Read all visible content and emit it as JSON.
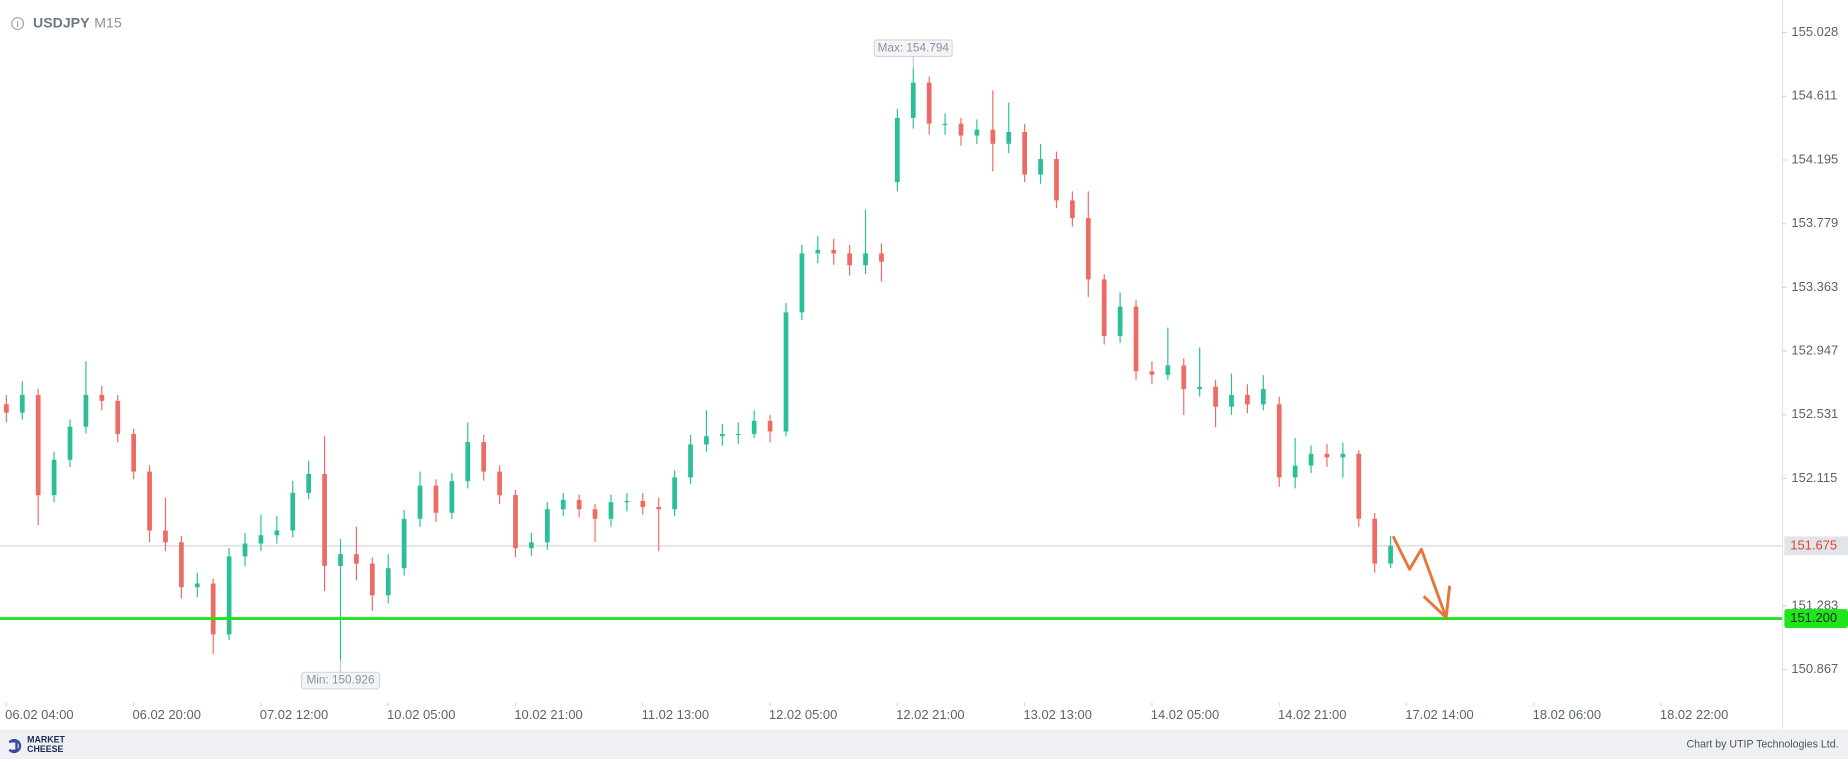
{
  "chart_data": {
    "type": "candlestick",
    "title": "USDJPY",
    "subtitle": "M15",
    "up_color": "#2bbf98",
    "down_color": "#ee6b63",
    "xlim": [
      -0.4,
      111.6
    ],
    "ylim": [
      150.66,
      155.24
    ],
    "yticks": [
      155.028,
      154.611,
      154.195,
      153.779,
      153.363,
      152.947,
      152.531,
      152.115,
      151.283,
      150.867
    ],
    "xticks": [
      {
        "value": 0,
        "label": "06.02 04:00"
      },
      {
        "value": 8,
        "label": "06.02 20:00"
      },
      {
        "value": 16,
        "label": "07.02 12:00"
      },
      {
        "value": 24,
        "label": "10.02 05:00"
      },
      {
        "value": 32,
        "label": "10.02 21:00"
      },
      {
        "value": 40,
        "label": "11.02 13:00"
      },
      {
        "value": 48,
        "label": "12.02 05:00"
      },
      {
        "value": 56,
        "label": "12.02 21:00"
      },
      {
        "value": 64,
        "label": "13.02 13:00"
      },
      {
        "value": 72,
        "label": "14.02 05:00"
      },
      {
        "value": 80,
        "label": "14.02 21:00"
      },
      {
        "value": 88,
        "label": "17.02 14:00"
      },
      {
        "value": 96,
        "label": "18.02 06:00"
      },
      {
        "value": 104,
        "label": "18.02 22:00"
      }
    ],
    "candles": {
      "open": [
        152.6,
        152.545,
        152.661,
        152.006,
        152.237,
        152.453,
        152.661,
        152.622,
        152.406,
        152.16,
        151.775,
        151.698,
        151.405,
        151.429,
        151.097,
        151.606,
        151.69,
        151.744,
        151.775,
        152.021,
        152.145,
        151.544,
        151.621,
        151.559,
        151.352,
        151.529,
        151.852,
        152.068,
        151.891,
        152.098,
        152.353,
        152.16,
        152.006,
        151.66,
        151.698,
        151.914,
        151.975,
        151.914,
        151.852,
        151.96,
        151.968,
        151.929,
        151.914,
        152.122,
        152.337,
        152.391,
        152.406,
        152.406,
        152.491,
        152.422,
        153.2,
        153.585,
        153.608,
        153.585,
        153.508,
        153.585,
        154.05,
        154.47,
        154.701,
        154.432,
        154.432,
        154.355,
        154.393,
        154.301,
        154.378,
        154.1,
        154.201,
        153.931,
        153.816,
        153.415,
        153.046,
        153.238,
        152.815,
        152.792,
        152.853,
        152.699,
        152.714,
        152.584,
        152.661,
        152.599,
        152.6,
        152.122,
        152.199,
        152.276,
        152.253,
        152.276,
        151.852,
        151.559
      ],
      "high": [
        152.66,
        152.75,
        152.7,
        152.29,
        152.5,
        152.88,
        152.72,
        152.66,
        152.44,
        152.2,
        151.99,
        151.74,
        151.5,
        151.46,
        151.66,
        151.76,
        151.88,
        151.87,
        152.1,
        152.23,
        152.39,
        151.72,
        151.8,
        151.6,
        151.62,
        151.91,
        152.16,
        152.11,
        152.15,
        152.48,
        152.4,
        152.2,
        152.04,
        151.76,
        151.96,
        152.02,
        152.01,
        151.95,
        152.01,
        152.02,
        152.02,
        151.99,
        152.17,
        152.4,
        152.56,
        152.47,
        152.48,
        152.56,
        152.53,
        153.26,
        153.64,
        153.7,
        153.68,
        153.64,
        153.87,
        153.65,
        154.53,
        154.794,
        154.74,
        154.5,
        154.47,
        154.46,
        154.65,
        154.57,
        154.43,
        154.3,
        154.25,
        153.99,
        153.99,
        153.45,
        153.33,
        153.28,
        152.88,
        153.1,
        152.9,
        152.97,
        152.76,
        152.8,
        152.73,
        152.79,
        152.65,
        152.38,
        152.33,
        152.34,
        152.35,
        152.3,
        151.89,
        151.74
      ],
      "low": [
        152.48,
        152.5,
        151.81,
        151.96,
        152.19,
        152.41,
        152.56,
        152.35,
        152.11,
        151.7,
        151.64,
        151.33,
        151.34,
        150.97,
        151.06,
        151.54,
        151.64,
        151.69,
        151.73,
        151.98,
        151.38,
        150.926,
        151.45,
        151.25,
        151.3,
        151.48,
        151.8,
        151.83,
        151.85,
        152.05,
        152.1,
        151.95,
        151.6,
        151.61,
        151.65,
        151.87,
        151.86,
        151.7,
        151.8,
        151.9,
        151.88,
        151.64,
        151.87,
        152.08,
        152.29,
        152.33,
        152.34,
        152.38,
        152.35,
        152.39,
        153.15,
        153.52,
        153.51,
        153.44,
        153.45,
        153.4,
        153.99,
        154.4,
        154.36,
        154.36,
        154.29,
        154.3,
        154.12,
        154.24,
        154.05,
        154.04,
        153.88,
        153.76,
        153.3,
        152.99,
        153.0,
        152.76,
        152.73,
        152.76,
        152.53,
        152.65,
        152.45,
        152.53,
        152.54,
        152.56,
        152.06,
        152.05,
        152.15,
        152.19,
        152.12,
        151.8,
        151.5,
        151.53
      ],
      "close": [
        152.545,
        152.661,
        152.006,
        152.237,
        152.453,
        152.661,
        152.622,
        152.406,
        152.16,
        151.775,
        151.698,
        151.405,
        151.429,
        151.097,
        151.606,
        151.69,
        151.744,
        151.775,
        152.021,
        152.145,
        151.544,
        151.621,
        151.559,
        151.352,
        151.529,
        151.852,
        152.068,
        151.891,
        152.098,
        152.353,
        152.16,
        152.006,
        151.66,
        151.698,
        151.914,
        151.975,
        151.914,
        151.852,
        151.96,
        151.968,
        151.929,
        151.914,
        152.122,
        152.337,
        152.391,
        152.406,
        152.406,
        152.491,
        152.422,
        153.2,
        153.585,
        153.608,
        153.585,
        153.508,
        153.585,
        153.531,
        154.47,
        154.701,
        154.432,
        154.432,
        154.355,
        154.393,
        154.301,
        154.378,
        154.1,
        154.201,
        153.931,
        153.816,
        153.415,
        153.046,
        153.238,
        152.815,
        152.792,
        152.853,
        152.699,
        152.714,
        152.584,
        152.661,
        152.599,
        152.699,
        152.122,
        152.199,
        152.276,
        152.253,
        152.276,
        151.852,
        151.559,
        151.675
      ]
    },
    "annotations": [
      {
        "label": "Max: 154.794",
        "value": 154.794,
        "field": "high"
      },
      {
        "label": "Min: 150.926",
        "value": 150.926,
        "field": "low"
      }
    ],
    "last_price": {
      "value": 151.675
    },
    "levels": [
      {
        "value": 151.2,
        "label": "151.200",
        "color": "#1ee61a"
      }
    ],
    "brand": [
      "MARKET",
      "CHEESE"
    ],
    "credit": "Chart by UTIP Technologies Ltd."
  }
}
